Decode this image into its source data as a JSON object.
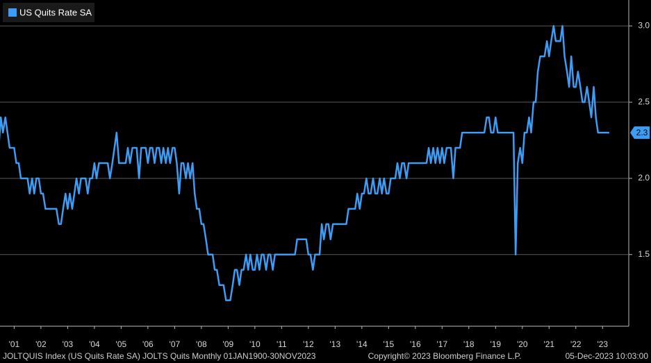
{
  "chart_data": {
    "type": "line",
    "legend": "top-left",
    "grid": true,
    "series": [
      {
        "name": "US Quits Rate SA",
        "color": "#3d9df5",
        "values": [
          2.2,
          2.4,
          2.3,
          2.4,
          2.3,
          2.2,
          2.2,
          2.2,
          2.1,
          2.1,
          2.0,
          2.0,
          2.0,
          2.0,
          1.9,
          2.0,
          1.9,
          2.0,
          2.0,
          1.9,
          1.9,
          1.8,
          1.8,
          1.8,
          1.8,
          1.8,
          1.8,
          1.7,
          1.7,
          1.8,
          1.9,
          1.8,
          1.9,
          1.8,
          1.9,
          2.0,
          1.9,
          2.0,
          2.0,
          2.0,
          1.9,
          2.0,
          2.0,
          2.1,
          2.0,
          2.1,
          2.1,
          2.1,
          2.1,
          2.1,
          2.0,
          2.1,
          2.2,
          2.3,
          2.1,
          2.1,
          2.1,
          2.1,
          2.2,
          2.1,
          2.2,
          2.2,
          2.2,
          2.0,
          2.2,
          2.2,
          2.2,
          2.1,
          2.2,
          2.2,
          2.1,
          2.2,
          2.2,
          2.1,
          2.2,
          2.1,
          2.2,
          2.1,
          2.2,
          2.2,
          2.1,
          1.9,
          2.1,
          2.1,
          2.0,
          2.1,
          2.0,
          2.1,
          1.9,
          1.8,
          1.8,
          1.7,
          1.7,
          1.6,
          1.5,
          1.5,
          1.5,
          1.4,
          1.4,
          1.3,
          1.3,
          1.3,
          1.2,
          1.2,
          1.2,
          1.3,
          1.4,
          1.4,
          1.3,
          1.4,
          1.4,
          1.5,
          1.4,
          1.5,
          1.4,
          1.4,
          1.5,
          1.4,
          1.5,
          1.5,
          1.4,
          1.5,
          1.5,
          1.4,
          1.5,
          1.5,
          1.5,
          1.5,
          1.5,
          1.5,
          1.5,
          1.5,
          1.5,
          1.5,
          1.6,
          1.6,
          1.6,
          1.6,
          1.6,
          1.5,
          1.5,
          1.4,
          1.5,
          1.5,
          1.5,
          1.7,
          1.6,
          1.7,
          1.7,
          1.6,
          1.7,
          1.7,
          1.7,
          1.7,
          1.7,
          1.7,
          1.7,
          1.8,
          1.8,
          1.8,
          1.8,
          1.9,
          1.8,
          1.9,
          1.9,
          2.0,
          1.9,
          1.9,
          2.0,
          1.9,
          1.9,
          2.0,
          1.9,
          2.0,
          1.9,
          1.9,
          2.0,
          2.0,
          2.0,
          2.1,
          2.0,
          2.1,
          2.1,
          2.0,
          2.1,
          2.1,
          2.1,
          2.1,
          2.1,
          2.1,
          2.1,
          2.1,
          2.1,
          2.2,
          2.1,
          2.2,
          2.1,
          2.2,
          2.1,
          2.2,
          2.1,
          2.2,
          2.2,
          2.2,
          2.0,
          2.2,
          2.2,
          2.2,
          2.3,
          2.3,
          2.3,
          2.3,
          2.3,
          2.3,
          2.3,
          2.3,
          2.3,
          2.3,
          2.3,
          2.4,
          2.4,
          2.3,
          2.3,
          2.4,
          2.3,
          2.3,
          2.3,
          2.3,
          2.3,
          2.3,
          2.3,
          2.3,
          1.5,
          2.1,
          2.2,
          2.1,
          2.3,
          2.3,
          2.4,
          2.3,
          2.5,
          2.5,
          2.7,
          2.8,
          2.8,
          2.8,
          2.9,
          2.8,
          2.9,
          3.0,
          2.9,
          2.9,
          2.9,
          3.0,
          2.8,
          2.7,
          2.6,
          2.8,
          2.6,
          2.6,
          2.7,
          2.6,
          2.5,
          2.5,
          2.6,
          2.5,
          2.4,
          2.6,
          2.4,
          2.3,
          2.3,
          2.3,
          2.3,
          2.3,
          2.3
        ]
      }
    ],
    "x": [
      2000.92,
      2001,
      2001.08,
      2001.17,
      2001.25,
      2001.33,
      2001.42,
      2001.5,
      2001.58,
      2001.67,
      2001.75,
      2001.83,
      2001.92,
      2002,
      2002.08,
      2002.17,
      2002.25,
      2002.33,
      2002.42,
      2002.5,
      2002.58,
      2002.67,
      2002.75,
      2002.83,
      2002.92,
      2003,
      2003.08,
      2003.17,
      2003.25,
      2003.33,
      2003.42,
      2003.5,
      2003.58,
      2003.67,
      2003.75,
      2003.83,
      2003.92,
      2004,
      2004.08,
      2004.17,
      2004.25,
      2004.33,
      2004.42,
      2004.5,
      2004.58,
      2004.67,
      2004.75,
      2004.83,
      2004.92,
      2005,
      2005.08,
      2005.17,
      2005.25,
      2005.33,
      2005.42,
      2005.5,
      2005.58,
      2005.67,
      2005.75,
      2005.83,
      2005.92,
      2006,
      2006.08,
      2006.17,
      2006.25,
      2006.33,
      2006.42,
      2006.5,
      2006.58,
      2006.67,
      2006.75,
      2006.83,
      2006.92,
      2007,
      2007.08,
      2007.17,
      2007.25,
      2007.33,
      2007.42,
      2007.5,
      2007.58,
      2007.67,
      2007.75,
      2007.83,
      2007.92,
      2008,
      2008.08,
      2008.17,
      2008.25,
      2008.33,
      2008.42,
      2008.5,
      2008.58,
      2008.67,
      2008.75,
      2008.83,
      2008.92,
      2009,
      2009.08,
      2009.17,
      2009.25,
      2009.33,
      2009.42,
      2009.5,
      2009.58,
      2009.67,
      2009.75,
      2009.83,
      2009.92,
      2010,
      2010.08,
      2010.17,
      2010.25,
      2010.33,
      2010.42,
      2010.5,
      2010.58,
      2010.67,
      2010.75,
      2010.83,
      2010.92,
      2011,
      2011.08,
      2011.17,
      2011.25,
      2011.33,
      2011.42,
      2011.5,
      2011.58,
      2011.67,
      2011.75,
      2011.83,
      2011.92,
      2012,
      2012.08,
      2012.17,
      2012.25,
      2012.33,
      2012.42,
      2012.5,
      2012.58,
      2012.67,
      2012.75,
      2012.83,
      2012.92,
      2013,
      2013.08,
      2013.17,
      2013.25,
      2013.33,
      2013.42,
      2013.5,
      2013.58,
      2013.67,
      2013.75,
      2013.83,
      2013.92,
      2014,
      2014.08,
      2014.17,
      2014.25,
      2014.33,
      2014.42,
      2014.5,
      2014.58,
      2014.67,
      2014.75,
      2014.83,
      2014.92,
      2015,
      2015.08,
      2015.17,
      2015.25,
      2015.33,
      2015.42,
      2015.5,
      2015.58,
      2015.67,
      2015.75,
      2015.83,
      2015.92,
      2016,
      2016.08,
      2016.17,
      2016.25,
      2016.33,
      2016.42,
      2016.5,
      2016.58,
      2016.67,
      2016.75,
      2016.83,
      2016.92,
      2017,
      2017.08,
      2017.17,
      2017.25,
      2017.33,
      2017.42,
      2017.5,
      2017.58,
      2017.67,
      2017.75,
      2017.83,
      2017.92,
      2018,
      2018.08,
      2018.17,
      2018.25,
      2018.33,
      2018.42,
      2018.5,
      2018.58,
      2018.67,
      2018.75,
      2018.83,
      2018.92,
      2019,
      2019.08,
      2019.17,
      2019.25,
      2019.33,
      2019.42,
      2019.5,
      2019.58,
      2019.67,
      2019.75,
      2019.83,
      2019.92,
      2020,
      2020.08,
      2020.17,
      2020.25,
      2020.33,
      2020.42,
      2020.5,
      2020.58,
      2020.67,
      2020.75,
      2020.83,
      2020.92,
      2021,
      2021.08,
      2021.17,
      2021.25,
      2021.33,
      2021.42,
      2021.5,
      2021.58,
      2021.67,
      2021.75,
      2021.83,
      2021.92,
      2022,
      2022.08,
      2022.17,
      2022.25,
      2022.33,
      2022.42,
      2022.5,
      2022.58,
      2022.67,
      2022.75,
      2022.83,
      2022.92,
      2023,
      2023.08,
      2023.17,
      2023.25,
      2023.33,
      2023.42,
      2023.5,
      2023.58,
      2023.67,
      2023.75
    ],
    "xlim": [
      2000.97,
      2024.48
    ],
    "xticks": [
      {
        "value": 2001.5,
        "label": "'01"
      },
      {
        "value": 2002.5,
        "label": "'02"
      },
      {
        "value": 2003.5,
        "label": "'03"
      },
      {
        "value": 2004.5,
        "label": "'04"
      },
      {
        "value": 2005.5,
        "label": "'05"
      },
      {
        "value": 2006.5,
        "label": "'06"
      },
      {
        "value": 2007.5,
        "label": "'07"
      },
      {
        "value": 2008.5,
        "label": "'08"
      },
      {
        "value": 2009.5,
        "label": "'09"
      },
      {
        "value": 2010.5,
        "label": "'10"
      },
      {
        "value": 2011.5,
        "label": "'11"
      },
      {
        "value": 2012.5,
        "label": "'12"
      },
      {
        "value": 2013.5,
        "label": "'13"
      },
      {
        "value": 2014.5,
        "label": "'14"
      },
      {
        "value": 2015.5,
        "label": "'15"
      },
      {
        "value": 2016.5,
        "label": "'16"
      },
      {
        "value": 2017.5,
        "label": "'17"
      },
      {
        "value": 2018.5,
        "label": "'18"
      },
      {
        "value": 2019.5,
        "label": "'19"
      },
      {
        "value": 2020.5,
        "label": "'20"
      },
      {
        "value": 2021.5,
        "label": "'21"
      },
      {
        "value": 2022.5,
        "label": "'22"
      },
      {
        "value": 2023.5,
        "label": "'23"
      }
    ],
    "ylim": [
      1.03,
      3.17
    ],
    "yticks": [
      1.5,
      {
        "value": 2,
        "label": "2.0"
      },
      2.5,
      {
        "value": 3,
        "label": "3.0"
      }
    ],
    "footer": {
      "source": "JOLTQUIS Index (US Quits Rate SA) JOLTS Quits  Monthly 01JAN1900-30NOV2023",
      "copyright": "Copyright© 2023 Bloomberg Finance L.P.",
      "timestamp": "05-Dec-2023 10:03:00"
    }
  }
}
